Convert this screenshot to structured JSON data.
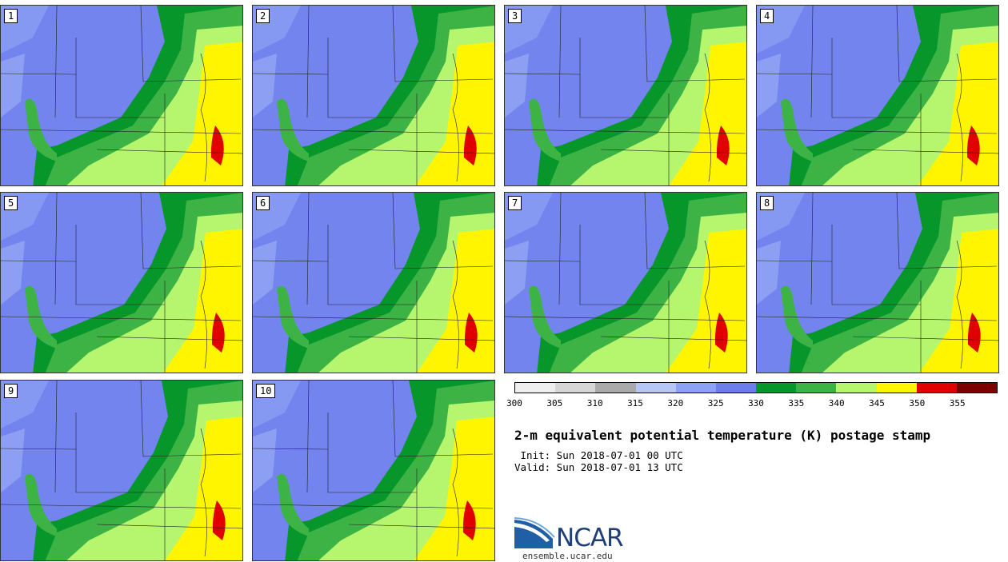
{
  "members": [
    "1",
    "2",
    "3",
    "4",
    "5",
    "6",
    "7",
    "8",
    "9",
    "10"
  ],
  "colorbar": {
    "ticks": [
      "300",
      "305",
      "310",
      "315",
      "320",
      "325",
      "330",
      "335",
      "340",
      "345",
      "350",
      "355"
    ],
    "colors": [
      "#efefef",
      "#d6d6d6",
      "#aaaaaa",
      "#b7c6f7",
      "#8da2f4",
      "#6d7eeb",
      "#07962a",
      "#3db346",
      "#b5f66e",
      "#fff500",
      "#e00000",
      "#7d0000"
    ]
  },
  "title": "2-m equivalent potential temperature (K) postage stamp",
  "init_line": " Init: Sun 2018-07-01 00 UTC",
  "valid_line": "Valid: Sun 2018-07-01 13 UTC",
  "logo": {
    "name": "NCAR",
    "url": "ensemble.ucar.edu",
    "icon": "ncar-arc-logo"
  }
}
